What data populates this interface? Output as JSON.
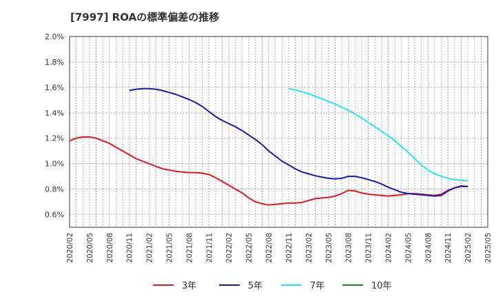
{
  "chart_data": {
    "type": "line",
    "title": "[7997]  ROAの標準偏差の推移",
    "xlabel": "",
    "ylabel": "",
    "ylim": [
      0.5,
      2.0
    ],
    "yticks": [
      "0.6%",
      "0.8%",
      "1.0%",
      "1.2%",
      "1.4%",
      "1.6%",
      "1.8%",
      "2.0%"
    ],
    "ytick_values": [
      0.6,
      0.8,
      1.0,
      1.2,
      1.4,
      1.6,
      1.8,
      2.0
    ],
    "xticks": [
      "2020/02",
      "2020/05",
      "2020/08",
      "2020/11",
      "2021/02",
      "2021/05",
      "2021/08",
      "2021/11",
      "2022/02",
      "2022/05",
      "2022/08",
      "2022/11",
      "2023/02",
      "2023/05",
      "2023/08",
      "2023/11",
      "2024/02",
      "2024/05",
      "2024/08",
      "2024/11",
      "2025/02",
      "2025/05"
    ],
    "grid": true,
    "legend_position": "bottom",
    "series": [
      {
        "name": "3年",
        "color": "#e8141b",
        "x": [
          "2020/02",
          "2020/03",
          "2020/04",
          "2020/05",
          "2020/06",
          "2020/07",
          "2020/08",
          "2020/09",
          "2020/10",
          "2020/11",
          "2020/12",
          "2021/01",
          "2021/02",
          "2021/03",
          "2021/04",
          "2021/05",
          "2021/06",
          "2021/07",
          "2021/08",
          "2021/09",
          "2021/10",
          "2021/11",
          "2021/12",
          "2022/01",
          "2022/02",
          "2022/03",
          "2022/04",
          "2022/05",
          "2022/06",
          "2022/07",
          "2022/08",
          "2022/09",
          "2022/10",
          "2022/11",
          "2022/12",
          "2023/01",
          "2023/02",
          "2023/03",
          "2023/04",
          "2023/05",
          "2023/06",
          "2023/07",
          "2023/08",
          "2023/09",
          "2023/10",
          "2023/11",
          "2023/12",
          "2024/01",
          "2024/02",
          "2024/03",
          "2024/04",
          "2024/05",
          "2024/06",
          "2024/07",
          "2024/08",
          "2024/09",
          "2024/10",
          "2024/11",
          "2024/12",
          "2025/01",
          "2025/02"
        ],
        "values": [
          1.18,
          1.2,
          1.21,
          1.21,
          1.2,
          1.18,
          1.16,
          1.13,
          1.1,
          1.07,
          1.04,
          1.02,
          1.0,
          0.98,
          0.96,
          0.95,
          0.94,
          0.935,
          0.93,
          0.93,
          0.925,
          0.915,
          0.89,
          0.86,
          0.83,
          0.8,
          0.77,
          0.73,
          0.7,
          0.685,
          0.675,
          0.68,
          0.685,
          0.69,
          0.69,
          0.695,
          0.71,
          0.725,
          0.73,
          0.735,
          0.745,
          0.765,
          0.79,
          0.785,
          0.77,
          0.76,
          0.755,
          0.75,
          0.745,
          0.75,
          0.755,
          0.765,
          0.765,
          0.76,
          0.755,
          0.75,
          0.76,
          0.79,
          0.81,
          0.82,
          0.82
        ]
      },
      {
        "name": "5年",
        "color": "#1616b4",
        "x": [
          "2020/11",
          "2020/12",
          "2021/01",
          "2021/02",
          "2021/03",
          "2021/04",
          "2021/05",
          "2021/06",
          "2021/07",
          "2021/08",
          "2021/09",
          "2021/10",
          "2021/11",
          "2021/12",
          "2022/01",
          "2022/02",
          "2022/03",
          "2022/04",
          "2022/05",
          "2022/06",
          "2022/07",
          "2022/08",
          "2022/09",
          "2022/10",
          "2022/11",
          "2022/12",
          "2023/01",
          "2023/02",
          "2023/03",
          "2023/04",
          "2023/05",
          "2023/06",
          "2023/07",
          "2023/08",
          "2023/09",
          "2023/10",
          "2023/11",
          "2023/12",
          "2024/01",
          "2024/02",
          "2024/03",
          "2024/04",
          "2024/05",
          "2024/06",
          "2024/07",
          "2024/08",
          "2024/09",
          "2024/10",
          "2024/11",
          "2024/12",
          "2025/01",
          "2025/02"
        ],
        "values": [
          1.575,
          1.585,
          1.59,
          1.59,
          1.585,
          1.575,
          1.56,
          1.545,
          1.525,
          1.505,
          1.48,
          1.45,
          1.41,
          1.37,
          1.34,
          1.315,
          1.29,
          1.26,
          1.225,
          1.19,
          1.15,
          1.1,
          1.06,
          1.02,
          0.99,
          0.96,
          0.935,
          0.92,
          0.905,
          0.895,
          0.885,
          0.88,
          0.885,
          0.9,
          0.9,
          0.89,
          0.875,
          0.86,
          0.84,
          0.815,
          0.795,
          0.775,
          0.765,
          0.76,
          0.755,
          0.75,
          0.745,
          0.75,
          0.785,
          0.81,
          0.825,
          0.82
        ]
      },
      {
        "name": "7年",
        "color": "#22e8e8",
        "x": [
          "2022/11",
          "2022/12",
          "2023/01",
          "2023/02",
          "2023/03",
          "2023/04",
          "2023/05",
          "2023/06",
          "2023/07",
          "2023/08",
          "2023/09",
          "2023/10",
          "2023/11",
          "2023/12",
          "2024/01",
          "2024/02",
          "2024/03",
          "2024/04",
          "2024/05",
          "2024/06",
          "2024/07",
          "2024/08",
          "2024/09",
          "2024/10",
          "2024/11",
          "2024/12",
          "2025/01",
          "2025/02"
        ],
        "values": [
          1.59,
          1.58,
          1.565,
          1.55,
          1.53,
          1.51,
          1.49,
          1.47,
          1.445,
          1.42,
          1.39,
          1.36,
          1.325,
          1.29,
          1.255,
          1.22,
          1.18,
          1.135,
          1.09,
          1.04,
          0.99,
          0.95,
          0.92,
          0.9,
          0.885,
          0.875,
          0.87,
          0.865
        ]
      },
      {
        "name": "10年",
        "color": "#1a8c1a",
        "x": [],
        "values": []
      }
    ]
  }
}
